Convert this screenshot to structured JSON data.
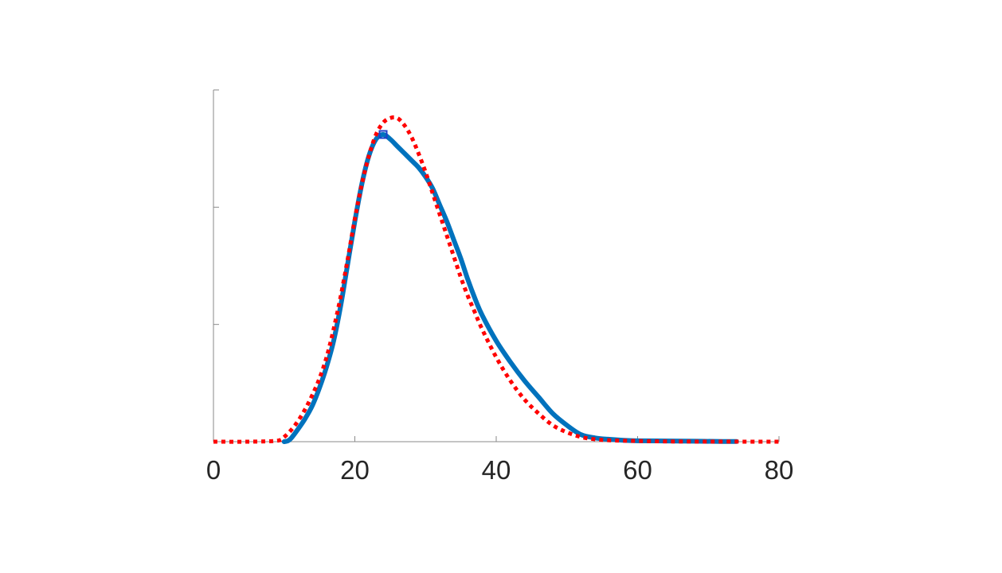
{
  "chart_data": {
    "type": "line",
    "title": "",
    "xlabel": "",
    "ylabel": "",
    "xlim": [
      0,
      80
    ],
    "ylim": [
      0,
      1.5
    ],
    "x_ticks": [
      0,
      20,
      40,
      60,
      80
    ],
    "x_tick_labels": [
      "0",
      "20",
      "40",
      "60",
      "80"
    ],
    "y_ticks": [
      0,
      0.5,
      1.0,
      1.5
    ],
    "y_tick_labels_shown": false,
    "grid": false,
    "legend": "none",
    "series": [
      {
        "style": "solid",
        "color": "#0072BD",
        "x": [
          10,
          10.5,
          11,
          12,
          13,
          14,
          15,
          16,
          17,
          18,
          19,
          20,
          21,
          22,
          23,
          24,
          25,
          26,
          27,
          28,
          29,
          30,
          31,
          32,
          33,
          34,
          35,
          36,
          37,
          38,
          40,
          42,
          44,
          46,
          48,
          50,
          52,
          54,
          56,
          58,
          60,
          64,
          68,
          72,
          74
        ],
        "y": [
          0,
          0.003,
          0.015,
          0.055,
          0.1,
          0.155,
          0.23,
          0.32,
          0.43,
          0.58,
          0.76,
          0.94,
          1.1,
          1.22,
          1.29,
          1.31,
          1.29,
          1.26,
          1.23,
          1.2,
          1.17,
          1.13,
          1.08,
          1.01,
          0.94,
          0.86,
          0.78,
          0.69,
          0.61,
          0.54,
          0.43,
          0.34,
          0.26,
          0.19,
          0.12,
          0.07,
          0.03,
          0.016,
          0.01,
          0.006,
          0.004,
          0.003,
          0.002,
          0.001,
          0.001
        ]
      },
      {
        "style": "dotted",
        "color": "#FF0000",
        "x": [
          0,
          5,
          9,
          10,
          11,
          12,
          13,
          14,
          15,
          16,
          17,
          18,
          19,
          20,
          21,
          22,
          23,
          24,
          25,
          26,
          27,
          28,
          29,
          30,
          31,
          32,
          33,
          34,
          35,
          36,
          37,
          38,
          40,
          42,
          44,
          46,
          48,
          50,
          52,
          54,
          56,
          60,
          65,
          70,
          75,
          80
        ],
        "y": [
          0,
          0,
          0.004,
          0.02,
          0.05,
          0.09,
          0.14,
          0.2,
          0.27,
          0.36,
          0.48,
          0.62,
          0.78,
          0.95,
          1.1,
          1.22,
          1.31,
          1.36,
          1.38,
          1.38,
          1.35,
          1.3,
          1.23,
          1.15,
          1.06,
          0.97,
          0.88,
          0.79,
          0.7,
          0.62,
          0.55,
          0.48,
          0.36,
          0.26,
          0.18,
          0.12,
          0.07,
          0.04,
          0.02,
          0.01,
          0.006,
          0.003,
          0.001,
          0.0005,
          0.0002,
          0
        ]
      }
    ],
    "markers": [
      {
        "x": 24,
        "y": 1.31,
        "shape": "square",
        "color": "#1F3FC8"
      }
    ]
  }
}
